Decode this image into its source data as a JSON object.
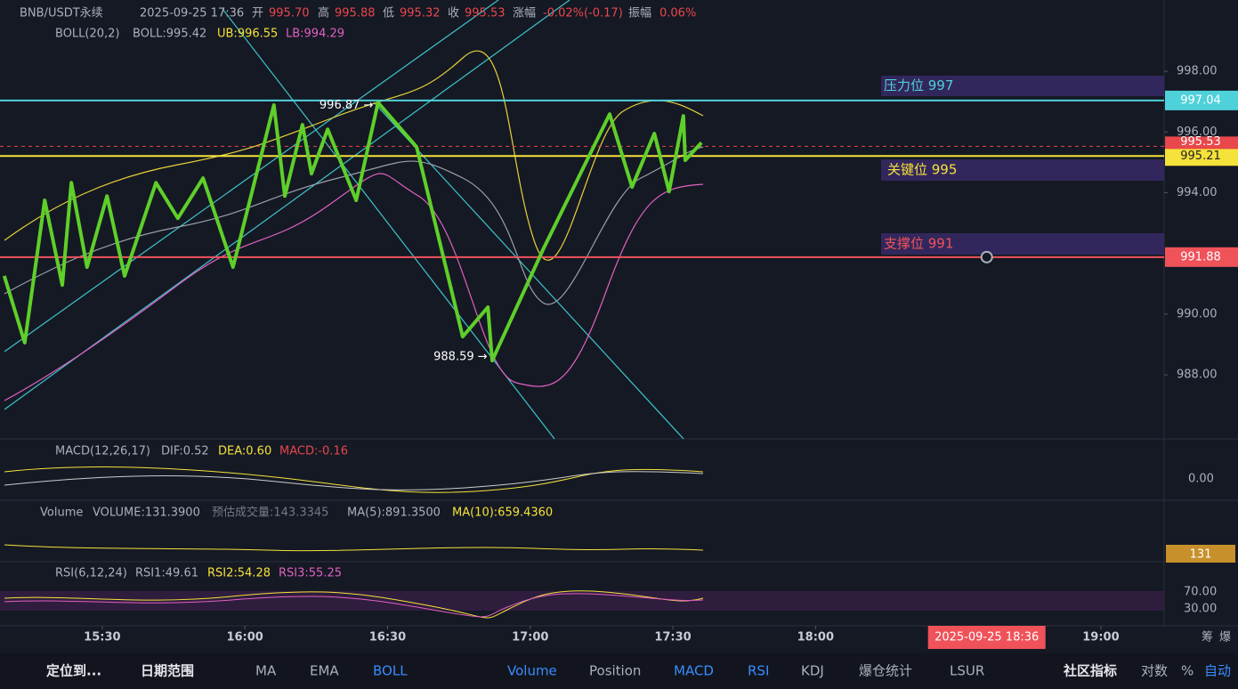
{
  "header": {
    "symbol": "BNB/USDT永续",
    "time": "2025-09-25 17:36",
    "open_label": "开",
    "open": "995.70",
    "high_label": "高",
    "high": "995.88",
    "low_label": "低",
    "low": "995.32",
    "close_label": "收",
    "close": "995.53",
    "change_label": "涨幅",
    "change": "-0.02%(-0.17)",
    "amp_label": "振幅",
    "amp": "0.06%"
  },
  "boll": {
    "name": "BOLL(20,2)",
    "mid": "BOLL:995.42",
    "ub": "UB:996.55",
    "lb": "LB:994.29"
  },
  "macd": {
    "name": "MACD(12,26,17)",
    "dif": "DIF:0.52",
    "dea": "DEA:0.60",
    "macd": "MACD:-0.16",
    "ytick": {
      "value": 0,
      "label": "0.00"
    }
  },
  "volume": {
    "name": "Volume",
    "vol": "VOLUME:131.3900",
    "est": "预估成交量:143.3345",
    "ma5": "MA(5):891.3500",
    "ma10": "MA(10):659.4360",
    "current": "131"
  },
  "rsi": {
    "name": "RSI(6,12,24)",
    "rsi1": "RSI1:49.61",
    "rsi2": "RSI2:54.28",
    "rsi3": "RSI3:55.25",
    "ylim": [
      -3.7,
      91.1
    ],
    "yticks": [
      {
        "value": 70,
        "label": "70.00"
      },
      {
        "value": 30,
        "label": "30.00"
      }
    ]
  },
  "chart_data": {
    "type": "line",
    "color": "#5fcf2a",
    "x": [
      909.4,
      913.7,
      917.9,
      921.6,
      923.5,
      926.8,
      931.0,
      934.7,
      941.3,
      945.9,
      951.2,
      957.5,
      966.1,
      968.4,
      972.1,
      974.0,
      977.4,
      983.4,
      988.0,
      996.1,
      1005.8,
      1011.1,
      1012.0,
      1022.7,
      1036.7,
      1041.4,
      1046.1,
      1049.2,
      1052.2,
      1052.6,
      1056.0
    ],
    "values": [
      991.26,
      989.06,
      993.75,
      990.96,
      994.33,
      991.55,
      993.89,
      991.26,
      994.33,
      993.16,
      994.48,
      991.55,
      996.89,
      993.89,
      996.24,
      994.63,
      996.09,
      993.75,
      996.97,
      995.51,
      989.26,
      990.23,
      988.47,
      992.13,
      996.59,
      994.19,
      995.95,
      994.04,
      996.53,
      995.07,
      995.65
    ],
    "xlim": [
      908.5,
      1153.3
    ],
    "ylim": [
      985.98,
      1000.35
    ],
    "xticks": [
      {
        "value": 930,
        "label": "15:30"
      },
      {
        "value": 960,
        "label": "16:00"
      },
      {
        "value": 990,
        "label": "16:30"
      },
      {
        "value": 1020,
        "label": "17:00"
      },
      {
        "value": 1050,
        "label": "17:30"
      },
      {
        "value": 1080,
        "label": "18:00"
      },
      {
        "value": 1140,
        "label": "19:00"
      }
    ],
    "yticks": [
      {
        "value": 998,
        "label": "998.00"
      },
      {
        "value": 996,
        "label": "996.00"
      },
      {
        "value": 994,
        "label": "994.00"
      },
      {
        "value": 990,
        "label": "990.00"
      },
      {
        "value": 988,
        "label": "988.00"
      }
    ],
    "levels": [
      {
        "value": 997.04,
        "label": "997.04",
        "zone": "压力位 997",
        "color": "#4fd1d9"
      },
      {
        "value": 995.21,
        "label": "995.21",
        "zone": "关键位 995",
        "color": "#f5e23a"
      },
      {
        "value": 991.88,
        "label": "991.88",
        "zone": "支撑位 991",
        "color": "#f0525a"
      }
    ],
    "last": {
      "value": 995.53,
      "label": "995.53"
    },
    "annotations": [
      {
        "text": "996.87 →",
        "x": 987,
        "value": 996.87
      },
      {
        "text": "988.59 →",
        "x": 1011,
        "value": 988.59
      }
    ],
    "crosshair": {
      "x": 1116,
      "label": "2025-09-25 18:36"
    }
  },
  "axis_right": [
    "筹",
    "爆"
  ],
  "toolbar": [
    "定位到...",
    "日期范围",
    "MA",
    "EMA",
    "BOLL",
    "Volume",
    "Position",
    "MACD",
    "RSI",
    "KDJ",
    "爆仓统计",
    "LSUR",
    "社区指标",
    "对数",
    "%",
    "自动"
  ]
}
